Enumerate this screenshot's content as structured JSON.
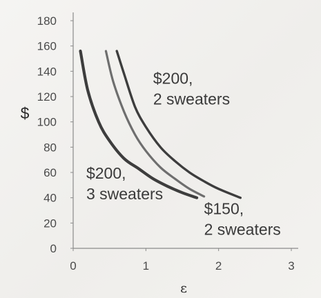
{
  "chart_data": {
    "type": "line",
    "title": "",
    "xlabel": "ε",
    "ylabel": "$",
    "xlim": [
      0,
      3
    ],
    "ylim": [
      0,
      180
    ],
    "x_ticks": [
      "0",
      "1",
      "2",
      "3"
    ],
    "y_ticks": [
      "0",
      "20",
      "40",
      "60",
      "80",
      "100",
      "120",
      "140",
      "160",
      "180"
    ],
    "grid": false,
    "legend": "none",
    "series": [
      {
        "name": "$200, 3 sweaters",
        "color": "#3d3d3d",
        "x": [
          0.1,
          0.2,
          0.35,
          0.5,
          0.7,
          0.9,
          1.1,
          1.3,
          1.5,
          1.7
        ],
        "y": [
          156,
          125,
          100,
          85,
          71,
          63,
          55,
          49,
          44,
          40
        ]
      },
      {
        "name": "$150, 2 sweaters",
        "color": "#6e6e6e",
        "x": [
          0.45,
          0.55,
          0.7,
          0.85,
          1.0,
          1.2,
          1.4,
          1.6,
          1.8
        ],
        "y": [
          156,
          132,
          108,
          90,
          77,
          64,
          55,
          47,
          41
        ]
      },
      {
        "name": "$200, 2 sweaters",
        "color": "#3d3d3d",
        "x": [
          0.6,
          0.7,
          0.85,
          1.0,
          1.2,
          1.4,
          1.6,
          1.8,
          2.0,
          2.3
        ],
        "y": [
          156,
          138,
          112,
          96,
          80,
          69,
          60,
          53,
          47,
          40
        ]
      }
    ],
    "annotations": [
      {
        "line1": "$200,",
        "line2": "2 sweaters",
        "anchor_x": 1.1,
        "anchor_y": 130
      },
      {
        "line1": "$200,",
        "line2": "3 sweaters",
        "anchor_x": 0.18,
        "anchor_y": 55
      },
      {
        "line1": "$150,",
        "line2": "2 sweaters",
        "anchor_x": 1.8,
        "anchor_y": 27
      }
    ]
  }
}
